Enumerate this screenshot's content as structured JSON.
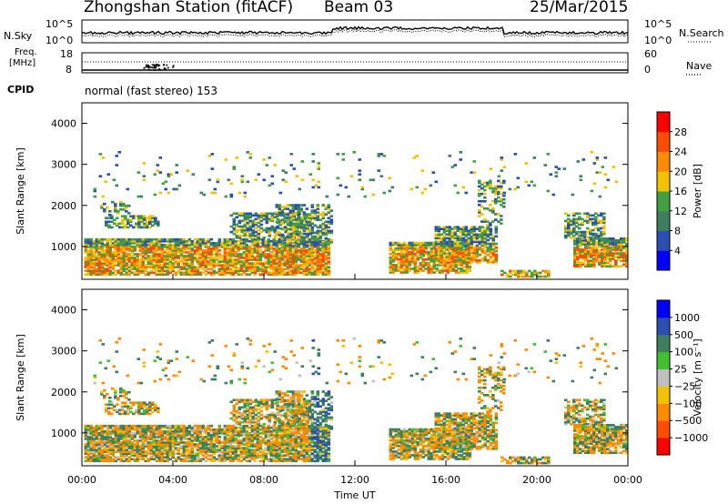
{
  "header": {
    "station": "Zhongshan Station (fitACF)",
    "beam": "Beam 03",
    "date": "25/Mar/2015"
  },
  "top_panels": {
    "nsky_label": "N.Sky",
    "nsearch_label": "N.Search",
    "noise_ticks_left": [
      "10^5",
      "10^0"
    ],
    "noise_ticks_right": [
      "10^5",
      "10^0"
    ],
    "freq_label": "Freq.",
    "freq_unit": "[MHz]",
    "freq_ticks": [
      "18",
      "8"
    ],
    "nave_label": "Nave",
    "nave_ticks": [
      "60",
      "0"
    ],
    "cpid_label": "CPID",
    "cpid_text": "normal (fast stereo) 153"
  },
  "colors": {
    "power_scale": [
      "#0000ff",
      "#2b4fb0",
      "#3d7f5f",
      "#42a040",
      "#f2c200",
      "#ff8c00",
      "#ff4c00",
      "#ff0000"
    ],
    "velocity_scale": [
      "#ff0000",
      "#ff4c00",
      "#ff8c00",
      "#f2c200",
      "#c0c0c0",
      "#42c030",
      "#3d7f5f",
      "#2b4fb0",
      "#0000ff"
    ]
  },
  "chart_data": [
    {
      "type": "heatmap",
      "name": "power",
      "ylabel": "Slant Range [km]",
      "y_ticks": [
        "1000",
        "2000",
        "3000",
        "4000"
      ],
      "ylim": [
        200,
        4500
      ],
      "x_ticks": [
        "00:00",
        "04:00",
        "08:00",
        "12:00",
        "16:00",
        "20:00",
        "00:00"
      ],
      "xlim": [
        0,
        24
      ],
      "colorbar_label": "Power [dB]",
      "colorbar_ticks": [
        "4",
        "8",
        "12",
        "16",
        "20",
        "24",
        "28"
      ],
      "color_range": [
        0,
        32
      ]
    },
    {
      "type": "heatmap",
      "name": "velocity",
      "ylabel": "Slant Range [km]",
      "y_ticks": [
        "1000",
        "2000",
        "3000",
        "4000"
      ],
      "ylim": [
        200,
        4500
      ],
      "x_ticks": [
        "00:00",
        "04:00",
        "08:00",
        "12:00",
        "16:00",
        "20:00",
        "00:00"
      ],
      "xlim": [
        0,
        24
      ],
      "xlabel": "Time UT",
      "colorbar_label": "Velocity [m s⁻¹]",
      "colorbar_ticks": [
        "1000",
        "500",
        "100",
        "25",
        "−25",
        "−100",
        "−500",
        "−1000"
      ]
    }
  ]
}
